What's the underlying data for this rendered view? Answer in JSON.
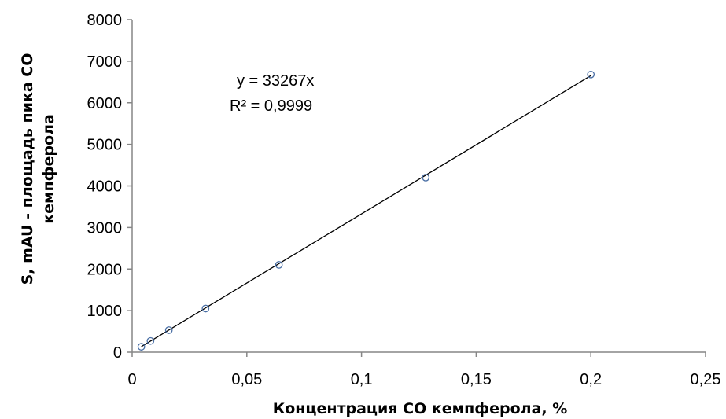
{
  "chart_data": {
    "type": "scatter",
    "xlabel": "Концентрация СО кемпферола, %",
    "ylabel_lines": [
      "S, mAU - площадь пика СО",
      "кемпферола"
    ],
    "xlim": [
      0,
      0.25
    ],
    "ylim": [
      0,
      8000
    ],
    "x_ticks": [
      0,
      0.05,
      0.1,
      0.15,
      0.2,
      0.25
    ],
    "x_tick_labels": [
      "0",
      "0,05",
      "0,1",
      "0,15",
      "0,2",
      "0,25"
    ],
    "y_ticks": [
      0,
      1000,
      2000,
      3000,
      4000,
      5000,
      6000,
      7000,
      8000
    ],
    "y_tick_labels": [
      "0",
      "1000",
      "2000",
      "3000",
      "4000",
      "5000",
      "6000",
      "7000",
      "8000"
    ],
    "grid": false,
    "legend": "none",
    "series": [
      {
        "x": [
          0.004,
          0.008,
          0.016,
          0.032,
          0.064,
          0.128,
          0.2
        ],
        "y": [
          130,
          270,
          530,
          1050,
          2100,
          4200,
          6680
        ],
        "marker": "open-circle",
        "color": "#4a6fa5"
      }
    ],
    "trendline": {
      "slope": 33267,
      "x_range": [
        0.004,
        0.2
      ],
      "color": "#000000",
      "equation": "y = 33267x",
      "r_squared": "R² = 0,9999"
    }
  }
}
